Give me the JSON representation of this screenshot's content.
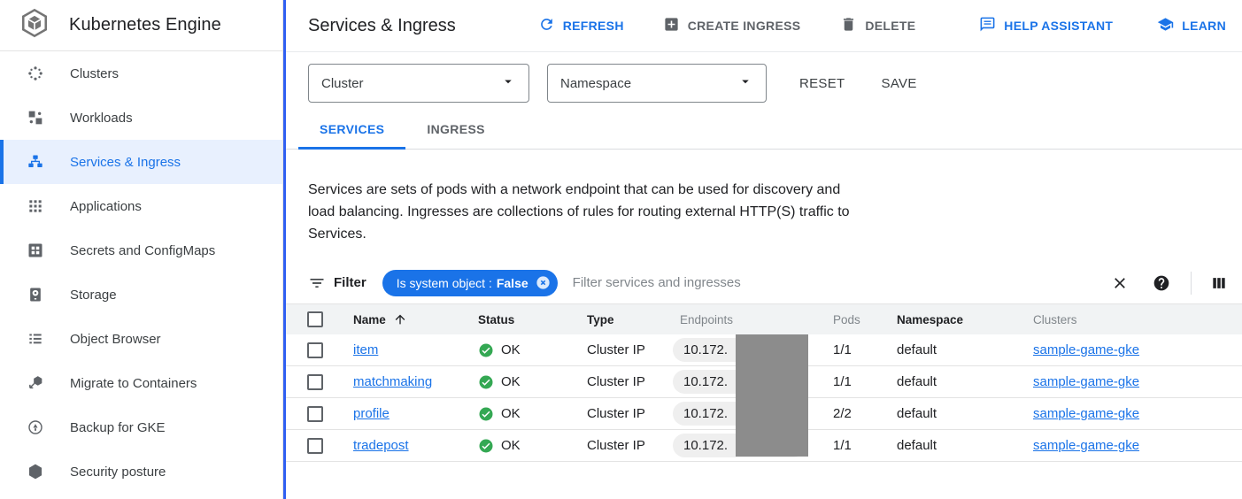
{
  "colors": {
    "accent": "#1a73e8",
    "accent_bar": "#2f5ff2",
    "success": "#34a853",
    "redaction": "#8c8c8c"
  },
  "sidebar": {
    "title": "Kubernetes Engine",
    "items": [
      {
        "label": "Clusters",
        "icon": "clusters-icon",
        "selected": false
      },
      {
        "label": "Workloads",
        "icon": "workloads-icon",
        "selected": false
      },
      {
        "label": "Services & Ingress",
        "icon": "services-ingress-icon",
        "selected": true
      },
      {
        "label": "Applications",
        "icon": "applications-icon",
        "selected": false
      },
      {
        "label": "Secrets and ConfigMaps",
        "icon": "secrets-configmaps-icon",
        "selected": false
      },
      {
        "label": "Storage",
        "icon": "storage-icon",
        "selected": false
      },
      {
        "label": "Object Browser",
        "icon": "object-browser-icon",
        "selected": false
      },
      {
        "label": "Migrate to Containers",
        "icon": "migrate-containers-icon",
        "selected": false
      },
      {
        "label": "Backup for GKE",
        "icon": "backup-gke-icon",
        "selected": false
      },
      {
        "label": "Security posture",
        "icon": "security-posture-icon",
        "selected": false
      }
    ]
  },
  "header": {
    "title": "Services & Ingress",
    "actions": {
      "refresh": "REFRESH",
      "create_ingress": "CREATE INGRESS",
      "delete": "DELETE",
      "help_assistant": "HELP ASSISTANT",
      "learn": "LEARN"
    }
  },
  "filters": {
    "cluster_label": "Cluster",
    "namespace_label": "Namespace",
    "reset_label": "RESET",
    "save_label": "SAVE"
  },
  "tabs": [
    {
      "label": "SERVICES",
      "active": true
    },
    {
      "label": "INGRESS",
      "active": false
    }
  ],
  "description": "Services are sets of pods with a network endpoint that can be used for discovery and load balancing. Ingresses are collections of rules for routing external HTTP(S) traffic to Services.",
  "filter_bar": {
    "label": "Filter",
    "chip_key": "Is system object :",
    "chip_value": "False",
    "placeholder": "Filter services and ingresses"
  },
  "table": {
    "columns": [
      {
        "label": "Name",
        "muted": false,
        "sorted": true
      },
      {
        "label": "Status",
        "muted": false,
        "sorted": false
      },
      {
        "label": "Type",
        "muted": false,
        "sorted": false
      },
      {
        "label": "Endpoints",
        "muted": true,
        "sorted": false
      },
      {
        "label": "Pods",
        "muted": true,
        "sorted": false
      },
      {
        "label": "Namespace",
        "muted": false,
        "sorted": false
      },
      {
        "label": "Clusters",
        "muted": true,
        "sorted": false
      }
    ],
    "rows": [
      {
        "name": "item",
        "status": "OK",
        "type": "Cluster IP",
        "endpoints": "10.172.",
        "pods": "1/1",
        "namespace": "default",
        "cluster": "sample-game-gke"
      },
      {
        "name": "matchmaking",
        "status": "OK",
        "type": "Cluster IP",
        "endpoints": "10.172.",
        "pods": "1/1",
        "namespace": "default",
        "cluster": "sample-game-gke"
      },
      {
        "name": "profile",
        "status": "OK",
        "type": "Cluster IP",
        "endpoints": "10.172.",
        "pods": "2/2",
        "namespace": "default",
        "cluster": "sample-game-gke"
      },
      {
        "name": "tradepost",
        "status": "OK",
        "type": "Cluster IP",
        "endpoints": "10.172.",
        "pods": "1/1",
        "namespace": "default",
        "cluster": "sample-game-gke"
      }
    ]
  }
}
